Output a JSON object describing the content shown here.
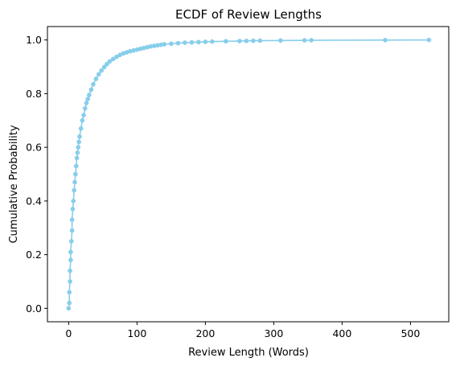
{
  "chart_data": {
    "type": "line",
    "title": "ECDF of Review Lengths",
    "xlabel": "Review Length (Words)",
    "ylabel": "Cumulative Probability",
    "xlim": [
      -31,
      556
    ],
    "ylim": [
      -0.05,
      1.05
    ],
    "xticks": [
      0,
      100,
      200,
      300,
      400,
      500
    ],
    "yticks": [
      0.0,
      0.2,
      0.4,
      0.6,
      0.8,
      1.0
    ],
    "xtick_labels": [
      "0",
      "100",
      "200",
      "300",
      "400",
      "500"
    ],
    "ytick_labels": [
      "0.0",
      "0.2",
      "0.4",
      "0.6",
      "0.8",
      "1.0"
    ],
    "grid": false,
    "series": [
      {
        "color": "#87CEEB",
        "marker": "circle",
        "x": [
          0,
          1,
          1,
          2,
          2,
          3,
          3,
          4,
          5,
          5,
          6,
          7,
          8,
          9,
          10,
          11,
          12,
          13,
          14,
          15,
          16,
          18,
          20,
          22,
          24,
          26,
          28,
          30,
          33,
          36,
          40,
          44,
          48,
          52,
          56,
          60,
          65,
          70,
          75,
          80,
          85,
          90,
          95,
          100,
          105,
          110,
          115,
          120,
          125,
          130,
          135,
          140,
          150,
          160,
          170,
          180,
          190,
          200,
          210,
          230,
          250,
          260,
          270,
          280,
          310,
          345,
          355,
          463,
          527
        ],
        "y": [
          0.0,
          0.02,
          0.06,
          0.1,
          0.14,
          0.18,
          0.21,
          0.25,
          0.29,
          0.33,
          0.37,
          0.4,
          0.44,
          0.47,
          0.5,
          0.53,
          0.56,
          0.58,
          0.6,
          0.62,
          0.64,
          0.67,
          0.7,
          0.72,
          0.745,
          0.765,
          0.78,
          0.795,
          0.815,
          0.835,
          0.855,
          0.872,
          0.886,
          0.899,
          0.91,
          0.92,
          0.929,
          0.937,
          0.944,
          0.95,
          0.954,
          0.958,
          0.961,
          0.964,
          0.967,
          0.97,
          0.973,
          0.976,
          0.978,
          0.98,
          0.982,
          0.984,
          0.986,
          0.988,
          0.99,
          0.991,
          0.992,
          0.993,
          0.994,
          0.995,
          0.996,
          0.9965,
          0.997,
          0.9975,
          0.998,
          0.9985,
          0.999,
          0.9995,
          1.0
        ]
      }
    ]
  }
}
